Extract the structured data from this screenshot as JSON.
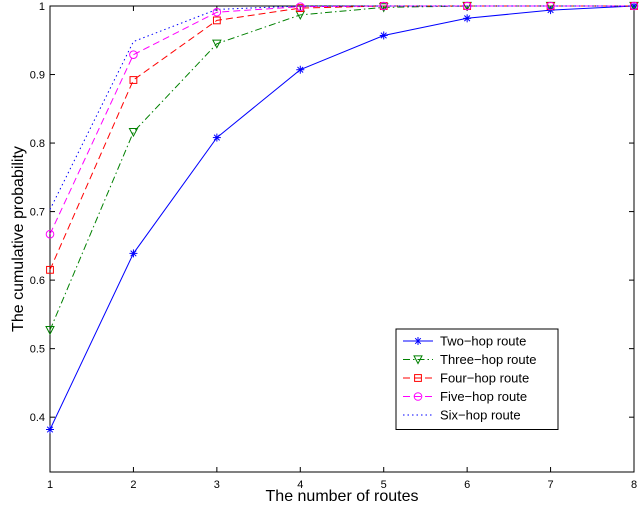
{
  "chart_data": {
    "type": "line",
    "title": "",
    "xlabel": "The number of routes",
    "ylabel": "The cumulative probability",
    "xlim": [
      1,
      8
    ],
    "ylim": [
      0.32,
      1.0
    ],
    "xticks": [
      "1",
      "2",
      "3",
      "4",
      "5",
      "6",
      "7",
      "8"
    ],
    "yticks": [
      "0.4",
      "0.5",
      "0.6",
      "0.7",
      "0.8",
      "0.9",
      "1"
    ],
    "grid": false,
    "legend_position": "bottom-right",
    "x": [
      1,
      2,
      3,
      4,
      5,
      6,
      7,
      8
    ],
    "series": [
      {
        "name": "Two−hop route",
        "values": [
          0.382,
          0.639,
          0.808,
          0.907,
          0.957,
          0.982,
          0.994,
          1.0
        ],
        "color": "#0000ff",
        "dash": "solid",
        "marker": "asterisk"
      },
      {
        "name": "Three−hop route",
        "values": [
          0.527,
          0.816,
          0.945,
          0.987,
          0.998,
          1.0,
          1.0,
          1.0
        ],
        "color": "#008000",
        "dash": "dashdot",
        "marker": "triangle-down"
      },
      {
        "name": "Four−hop route",
        "values": [
          0.615,
          0.892,
          0.979,
          0.997,
          1.0,
          1.0,
          1.0,
          1.0
        ],
        "color": "#ff0000",
        "dash": "dashed",
        "marker": "square"
      },
      {
        "name": "Five−hop route",
        "values": [
          0.667,
          0.929,
          0.991,
          0.999,
          1.0,
          1.0,
          1.0,
          1.0
        ],
        "color": "#ff00ff",
        "dash": "dashed",
        "marker": "circle"
      },
      {
        "name": "Six−hop route",
        "values": [
          0.703,
          0.948,
          0.995,
          1.0,
          1.0,
          1.0,
          1.0,
          1.0
        ],
        "color": "#0000ff",
        "dash": "dotted",
        "marker": "none"
      }
    ]
  }
}
